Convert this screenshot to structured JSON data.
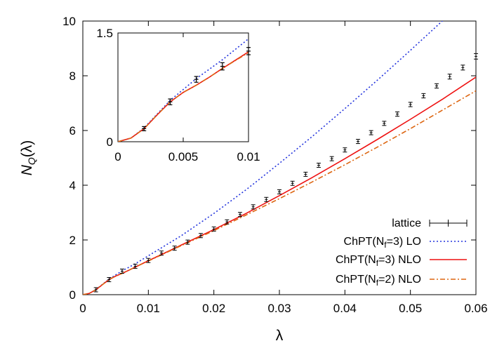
{
  "chart_data": {
    "type": "line",
    "xlabel": "λ",
    "ylabel_main": "N",
    "ylabel_sub": "Q",
    "ylabel_arg": "(λ)",
    "xlim": [
      0,
      0.06
    ],
    "ylim": [
      0,
      10
    ],
    "xticks": [
      "0",
      "0.01",
      "0.02",
      "0.03",
      "0.04",
      "0.05",
      "0.06"
    ],
    "yticks": [
      "0",
      "2",
      "4",
      "6",
      "8",
      "10"
    ],
    "legend_position": "bottom-right",
    "series": [
      {
        "name_main": "lattice",
        "name_sub": "",
        "name_tail": "",
        "style": "errorbar",
        "color": "#000000",
        "x": [
          0.002,
          0.004,
          0.006,
          0.008,
          0.01,
          0.012,
          0.014,
          0.016,
          0.018,
          0.02,
          0.022,
          0.024,
          0.026,
          0.028,
          0.03,
          0.032,
          0.034,
          0.036,
          0.038,
          0.04,
          0.042,
          0.044,
          0.046,
          0.048,
          0.05,
          0.052,
          0.054,
          0.056,
          0.058,
          0.06
        ],
        "y": [
          0.18,
          0.55,
          0.86,
          1.04,
          1.25,
          1.52,
          1.7,
          1.92,
          2.16,
          2.4,
          2.66,
          2.93,
          3.21,
          3.48,
          3.76,
          4.07,
          4.4,
          4.73,
          4.97,
          5.29,
          5.6,
          5.92,
          6.26,
          6.6,
          6.95,
          7.27,
          7.63,
          7.97,
          8.3,
          8.71
        ],
        "err": [
          0.02,
          0.04,
          0.04,
          0.05,
          0.05,
          0.05,
          0.05,
          0.05,
          0.05,
          0.05,
          0.05,
          0.05,
          0.05,
          0.05,
          0.06,
          0.06,
          0.06,
          0.06,
          0.06,
          0.07,
          0.07,
          0.07,
          0.07,
          0.08,
          0.08,
          0.08,
          0.08,
          0.09,
          0.09,
          0.1
        ]
      },
      {
        "name_main": "ChPT(N",
        "name_sub": "f",
        "name_tail": "=3) LO",
        "style": "dotted",
        "color": "#2233dd",
        "x": [
          0,
          0.001,
          0.002,
          0.003,
          0.004,
          0.006,
          0.008,
          0.01,
          0.015,
          0.02,
          0.025,
          0.03,
          0.035,
          0.04,
          0.045,
          0.05,
          0.055,
          0.058
        ],
        "y": [
          0,
          0.05,
          0.19,
          0.38,
          0.57,
          0.87,
          1.13,
          1.42,
          2.15,
          2.97,
          3.85,
          4.8,
          5.78,
          6.8,
          7.85,
          8.93,
          10.03,
          10.7
        ]
      },
      {
        "name_main": "ChPT(N",
        "name_sub": "f",
        "name_tail": "=3) NLO",
        "style": "solid",
        "color": "#ee1111",
        "x": [
          0,
          0.001,
          0.002,
          0.003,
          0.004,
          0.005,
          0.006,
          0.007,
          0.008,
          0.01,
          0.015,
          0.02,
          0.025,
          0.03,
          0.035,
          0.04,
          0.045,
          0.05,
          0.055,
          0.06
        ],
        "y": [
          0,
          0.05,
          0.18,
          0.37,
          0.55,
          0.68,
          0.78,
          0.89,
          1.01,
          1.24,
          1.81,
          2.38,
          2.98,
          3.62,
          4.28,
          4.97,
          5.68,
          6.41,
          7.16,
          7.95
        ]
      },
      {
        "name_main": "ChPT(N",
        "name_sub": "f",
        "name_tail": "=2) NLO",
        "style": "dashdot",
        "color": "#dd6611",
        "x": [
          0,
          0.001,
          0.002,
          0.003,
          0.004,
          0.005,
          0.006,
          0.007,
          0.008,
          0.01,
          0.015,
          0.02,
          0.025,
          0.03,
          0.035,
          0.04,
          0.045,
          0.05,
          0.055,
          0.06
        ],
        "y": [
          0,
          0.05,
          0.18,
          0.37,
          0.55,
          0.68,
          0.78,
          0.89,
          1.01,
          1.23,
          1.79,
          2.34,
          2.92,
          3.51,
          4.12,
          4.75,
          5.4,
          6.07,
          6.76,
          7.45
        ]
      }
    ],
    "inset": {
      "xlim": [
        0,
        0.01
      ],
      "ylim": [
        0,
        1.5
      ],
      "xticks": [
        "0",
        "0.005",
        "0.01"
      ],
      "yticks": [
        "0",
        "1.5"
      ]
    }
  }
}
